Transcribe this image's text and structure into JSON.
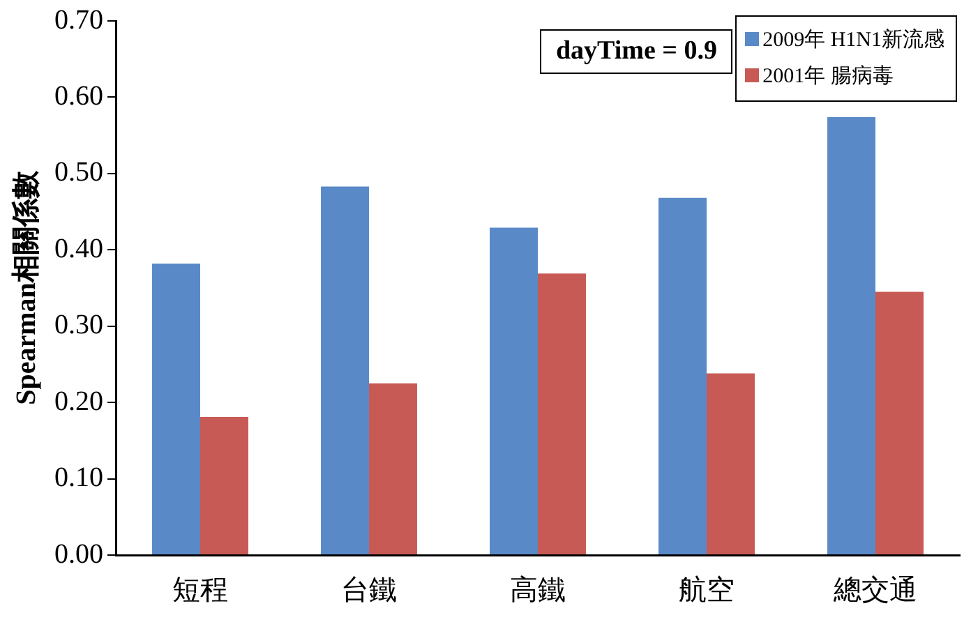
{
  "chart_data": {
    "type": "bar",
    "ylabel": "Spearman相關係數",
    "categories": [
      "短程",
      "台鐵",
      "高鐵",
      "航空",
      "總交通"
    ],
    "series": [
      {
        "name": "2009年 H1N1新流感",
        "color": "#5a89c8",
        "values": [
          0.382,
          0.483,
          0.429,
          0.468,
          0.574
        ]
      },
      {
        "name": "2001年 腸病毒",
        "color": "#c85a55",
        "values": [
          0.181,
          0.225,
          0.369,
          0.238,
          0.345
        ]
      }
    ],
    "ylim": [
      0,
      0.7
    ],
    "yticks": [
      {
        "value": 0,
        "label": "0.00"
      },
      {
        "value": 0.1,
        "label": "0.10"
      },
      {
        "value": 0.2,
        "label": "0.20"
      },
      {
        "value": 0.3,
        "label": "0.30"
      },
      {
        "value": 0.4,
        "label": "0.40"
      },
      {
        "value": 0.5,
        "label": "0.50"
      },
      {
        "value": 0.6,
        "label": "0.60"
      },
      {
        "value": 0.7,
        "label": "0.70"
      }
    ],
    "annotations": [
      "dayTime = 0.9"
    ],
    "grid": false,
    "legend": "top right"
  }
}
